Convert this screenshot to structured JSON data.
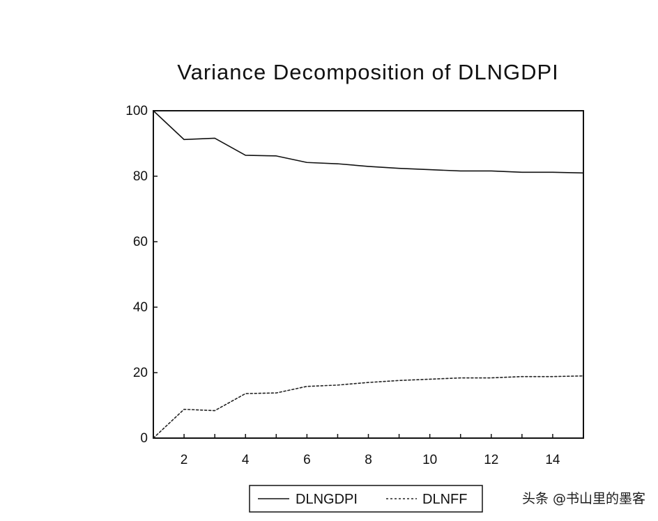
{
  "chart_data": {
    "type": "line",
    "title": "Variance Decomposition of DLNGDPI",
    "xlabel": "",
    "ylabel": "",
    "x": [
      1,
      2,
      3,
      4,
      5,
      6,
      7,
      8,
      9,
      10,
      11,
      12,
      13,
      14,
      15
    ],
    "xlim": [
      1,
      15
    ],
    "ylim": [
      0,
      100
    ],
    "x_ticks": [
      "2",
      "4",
      "6",
      "8",
      "10",
      "12",
      "14"
    ],
    "y_ticks": [
      "0",
      "20",
      "40",
      "60",
      "80",
      "100"
    ],
    "grid": false,
    "legend_position": "bottom",
    "series": [
      {
        "name": "DLNGDPI",
        "line_style": "solid",
        "color": "#111111",
        "values": [
          100,
          91.2,
          91.6,
          86.4,
          86.2,
          84.2,
          83.8,
          83.0,
          82.4,
          82.0,
          81.6,
          81.6,
          81.2,
          81.2,
          81.0
        ]
      },
      {
        "name": "DLNFF",
        "line_style": "dotted",
        "color": "#222222",
        "values": [
          0,
          8.8,
          8.4,
          13.6,
          13.8,
          15.8,
          16.2,
          17.0,
          17.6,
          18.0,
          18.4,
          18.4,
          18.8,
          18.8,
          19.0
        ]
      }
    ]
  },
  "watermark": {
    "text": "头条 @书山里的墨客"
  }
}
